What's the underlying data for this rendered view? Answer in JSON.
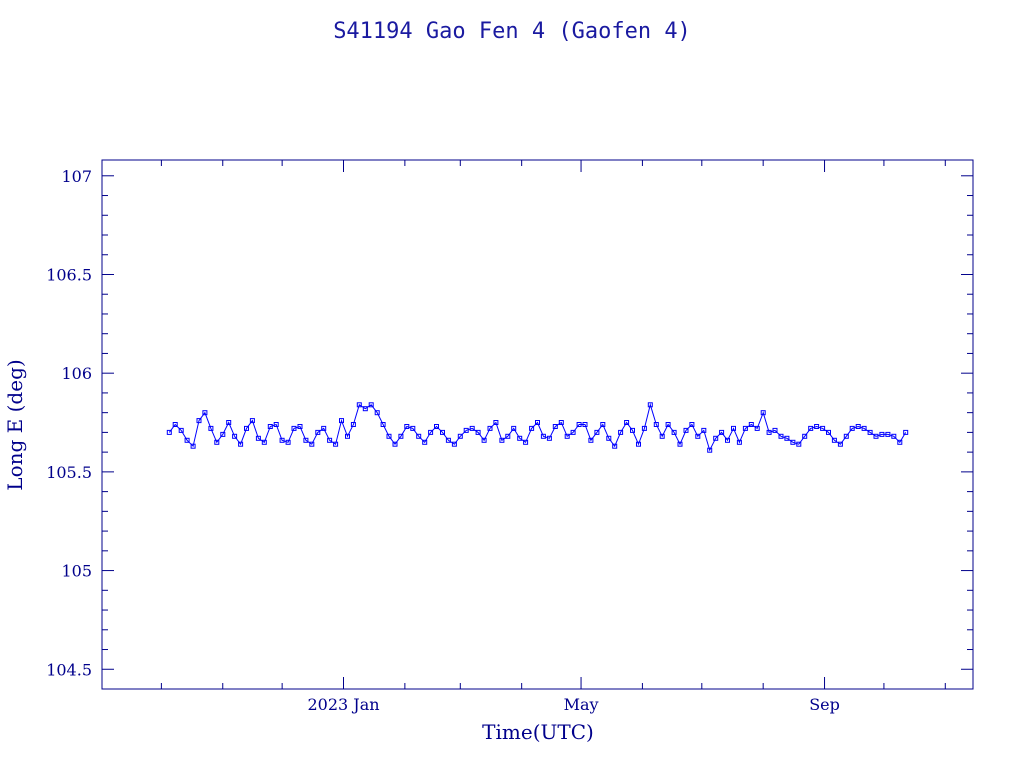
{
  "chart_data": {
    "type": "scatter",
    "title": "S41194 Gao Fen 4  (Gaofen 4)",
    "xlabel": "Time(UTC)",
    "ylabel": "Long E (deg)",
    "x_date_range": [
      "2022-09-01",
      "2023-11-15"
    ],
    "ylim": [
      104.4,
      107.08
    ],
    "yticks": [
      104.5,
      105,
      105.5,
      106,
      106.5,
      107
    ],
    "ytick_labels": [
      "104.5",
      "105",
      "105.5",
      "106",
      "106.5",
      "107"
    ],
    "xticks": [
      {
        "date": "2023-01-01",
        "label": "2023 Jan"
      },
      {
        "date": "2023-05-01",
        "label": "May"
      },
      {
        "date": "2023-09-01",
        "label": "Sep"
      }
    ],
    "grid": false,
    "series": [
      {
        "color": "#0000ff",
        "marker": "square",
        "points": [
          [
            "2022-10-05",
            105.7
          ],
          [
            "2022-10-08",
            105.74
          ],
          [
            "2022-10-11",
            105.71
          ],
          [
            "2022-10-14",
            105.66
          ],
          [
            "2022-10-17",
            105.63
          ],
          [
            "2022-10-20",
            105.76
          ],
          [
            "2022-10-23",
            105.8
          ],
          [
            "2022-10-26",
            105.72
          ],
          [
            "2022-10-29",
            105.65
          ],
          [
            "2022-11-01",
            105.69
          ],
          [
            "2022-11-04",
            105.75
          ],
          [
            "2022-11-07",
            105.68
          ],
          [
            "2022-11-10",
            105.64
          ],
          [
            "2022-11-13",
            105.72
          ],
          [
            "2022-11-16",
            105.76
          ],
          [
            "2022-11-19",
            105.67
          ],
          [
            "2022-11-22",
            105.65
          ],
          [
            "2022-11-25",
            105.73
          ],
          [
            "2022-11-28",
            105.74
          ],
          [
            "2022-12-01",
            105.66
          ],
          [
            "2022-12-04",
            105.65
          ],
          [
            "2022-12-07",
            105.72
          ],
          [
            "2022-12-10",
            105.73
          ],
          [
            "2022-12-13",
            105.66
          ],
          [
            "2022-12-16",
            105.64
          ],
          [
            "2022-12-19",
            105.7
          ],
          [
            "2022-12-22",
            105.72
          ],
          [
            "2022-12-25",
            105.66
          ],
          [
            "2022-12-28",
            105.64
          ],
          [
            "2022-12-31",
            105.76
          ],
          [
            "2023-01-03",
            105.68
          ],
          [
            "2023-01-06",
            105.74
          ],
          [
            "2023-01-09",
            105.84
          ],
          [
            "2023-01-12",
            105.82
          ],
          [
            "2023-01-15",
            105.84
          ],
          [
            "2023-01-18",
            105.8
          ],
          [
            "2023-01-21",
            105.74
          ],
          [
            "2023-01-24",
            105.68
          ],
          [
            "2023-01-27",
            105.64
          ],
          [
            "2023-01-30",
            105.68
          ],
          [
            "2023-02-02",
            105.73
          ],
          [
            "2023-02-05",
            105.72
          ],
          [
            "2023-02-08",
            105.68
          ],
          [
            "2023-02-11",
            105.65
          ],
          [
            "2023-02-14",
            105.7
          ],
          [
            "2023-02-17",
            105.73
          ],
          [
            "2023-02-20",
            105.7
          ],
          [
            "2023-02-23",
            105.66
          ],
          [
            "2023-02-26",
            105.64
          ],
          [
            "2023-03-01",
            105.68
          ],
          [
            "2023-03-04",
            105.71
          ],
          [
            "2023-03-07",
            105.72
          ],
          [
            "2023-03-10",
            105.7
          ],
          [
            "2023-03-13",
            105.66
          ],
          [
            "2023-03-16",
            105.72
          ],
          [
            "2023-03-19",
            105.75
          ],
          [
            "2023-03-22",
            105.66
          ],
          [
            "2023-03-25",
            105.68
          ],
          [
            "2023-03-28",
            105.72
          ],
          [
            "2023-03-31",
            105.67
          ],
          [
            "2023-04-03",
            105.65
          ],
          [
            "2023-04-06",
            105.72
          ],
          [
            "2023-04-09",
            105.75
          ],
          [
            "2023-04-12",
            105.68
          ],
          [
            "2023-04-15",
            105.67
          ],
          [
            "2023-04-18",
            105.73
          ],
          [
            "2023-04-21",
            105.75
          ],
          [
            "2023-04-24",
            105.68
          ],
          [
            "2023-04-27",
            105.7
          ],
          [
            "2023-04-30",
            105.74
          ],
          [
            "2023-05-03",
            105.74
          ],
          [
            "2023-05-06",
            105.66
          ],
          [
            "2023-05-09",
            105.7
          ],
          [
            "2023-05-12",
            105.74
          ],
          [
            "2023-05-15",
            105.67
          ],
          [
            "2023-05-18",
            105.63
          ],
          [
            "2023-05-21",
            105.7
          ],
          [
            "2023-05-24",
            105.75
          ],
          [
            "2023-05-27",
            105.71
          ],
          [
            "2023-05-30",
            105.64
          ],
          [
            "2023-06-02",
            105.72
          ],
          [
            "2023-06-05",
            105.84
          ],
          [
            "2023-06-08",
            105.74
          ],
          [
            "2023-06-11",
            105.68
          ],
          [
            "2023-06-14",
            105.74
          ],
          [
            "2023-06-17",
            105.7
          ],
          [
            "2023-06-20",
            105.64
          ],
          [
            "2023-06-23",
            105.71
          ],
          [
            "2023-06-26",
            105.74
          ],
          [
            "2023-06-29",
            105.68
          ],
          [
            "2023-07-02",
            105.71
          ],
          [
            "2023-07-05",
            105.61
          ],
          [
            "2023-07-08",
            105.67
          ],
          [
            "2023-07-11",
            105.7
          ],
          [
            "2023-07-14",
            105.66
          ],
          [
            "2023-07-17",
            105.72
          ],
          [
            "2023-07-20",
            105.65
          ],
          [
            "2023-07-23",
            105.72
          ],
          [
            "2023-07-26",
            105.74
          ],
          [
            "2023-07-29",
            105.72
          ],
          [
            "2023-08-01",
            105.8
          ],
          [
            "2023-08-04",
            105.7
          ],
          [
            "2023-08-07",
            105.71
          ],
          [
            "2023-08-10",
            105.68
          ],
          [
            "2023-08-13",
            105.67
          ],
          [
            "2023-08-16",
            105.65
          ],
          [
            "2023-08-19",
            105.64
          ],
          [
            "2023-08-22",
            105.68
          ],
          [
            "2023-08-25",
            105.72
          ],
          [
            "2023-08-28",
            105.73
          ],
          [
            "2023-08-31",
            105.72
          ],
          [
            "2023-09-03",
            105.7
          ],
          [
            "2023-09-06",
            105.66
          ],
          [
            "2023-09-09",
            105.64
          ],
          [
            "2023-09-12",
            105.68
          ],
          [
            "2023-09-15",
            105.72
          ],
          [
            "2023-09-18",
            105.73
          ],
          [
            "2023-09-21",
            105.72
          ],
          [
            "2023-09-24",
            105.7
          ],
          [
            "2023-09-27",
            105.68
          ],
          [
            "2023-09-30",
            105.69
          ],
          [
            "2023-10-03",
            105.69
          ],
          [
            "2023-10-06",
            105.68
          ],
          [
            "2023-10-09",
            105.65
          ],
          [
            "2023-10-12",
            105.7
          ]
        ]
      }
    ]
  }
}
